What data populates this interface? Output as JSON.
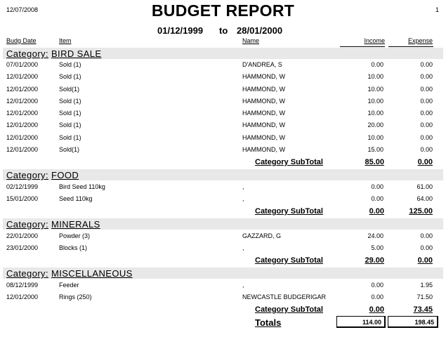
{
  "header": {
    "print_date": "12/07/2008",
    "page_number": "1",
    "title": "BUDGET REPORT",
    "range_from": "01/12/1999",
    "range_to_word": "to",
    "range_to": "28/01/2000"
  },
  "columns": {
    "budg_date": "Budg Date",
    "item": "Item",
    "name": "Name",
    "income": "Income",
    "expense": "Expense"
  },
  "category_prefix": "Category:",
  "subtotal_label": "Category SubTotal",
  "categories": [
    {
      "name": "BIRD SALE",
      "rows": [
        {
          "date": "07/01/2000",
          "item": "Sold (1)",
          "name": "D'ANDREA, S",
          "income": "0.00",
          "expense": "0.00"
        },
        {
          "date": "12/01/2000",
          "item": "Sold (1)",
          "name": "HAMMOND, W",
          "income": "10.00",
          "expense": "0.00"
        },
        {
          "date": "12/01/2000",
          "item": "Sold(1)",
          "name": "HAMMOND, W",
          "income": "10.00",
          "expense": "0.00"
        },
        {
          "date": "12/01/2000",
          "item": "Sold (1)",
          "name": "HAMMOND, W",
          "income": "10.00",
          "expense": "0.00"
        },
        {
          "date": "12/01/2000",
          "item": "Sold (1)",
          "name": "HAMMOND, W",
          "income": "10.00",
          "expense": "0.00"
        },
        {
          "date": "12/01/2000",
          "item": "Sold (1)",
          "name": "HAMMOND, W",
          "income": "20.00",
          "expense": "0.00"
        },
        {
          "date": "12/01/2000",
          "item": "Sold (1)",
          "name": "HAMMOND, W",
          "income": "10.00",
          "expense": "0.00"
        },
        {
          "date": "12/01/2000",
          "item": "Sold(1)",
          "name": "HAMMOND, W",
          "income": "15.00",
          "expense": "0.00"
        }
      ],
      "subtotal_income": "85.00",
      "subtotal_expense": "0.00"
    },
    {
      "name": "FOOD",
      "rows": [
        {
          "date": "02/12/1999",
          "item": "Bird Seed 110kg",
          "name": ",",
          "income": "0.00",
          "expense": "61.00"
        },
        {
          "date": "15/01/2000",
          "item": "Seed 110kg",
          "name": ",",
          "income": "0.00",
          "expense": "64.00"
        }
      ],
      "subtotal_income": "0.00",
      "subtotal_expense": "125.00"
    },
    {
      "name": "MINERALS",
      "rows": [
        {
          "date": "22/01/2000",
          "item": "Powder (3)",
          "name": "GAZZARD, G",
          "income": "24.00",
          "expense": "0.00"
        },
        {
          "date": "23/01/2000",
          "item": "Blocks (1)",
          "name": ",",
          "income": "5.00",
          "expense": "0.00"
        }
      ],
      "subtotal_income": "29.00",
      "subtotal_expense": "0.00"
    },
    {
      "name": "MISCELLANEOUS",
      "rows": [
        {
          "date": "08/12/1999",
          "item": "Feeder",
          "name": ",",
          "income": "0.00",
          "expense": "1.95"
        },
        {
          "date": "12/01/2000",
          "item": "Rings (250)",
          "name": "NEWCASTLE BUDGERIGAR",
          "income": "0.00",
          "expense": "71.50"
        }
      ],
      "subtotal_income": "0.00",
      "subtotal_expense": "73.45"
    }
  ],
  "totals": {
    "label": "Totals",
    "income": "114.00",
    "expense": "198.45"
  }
}
